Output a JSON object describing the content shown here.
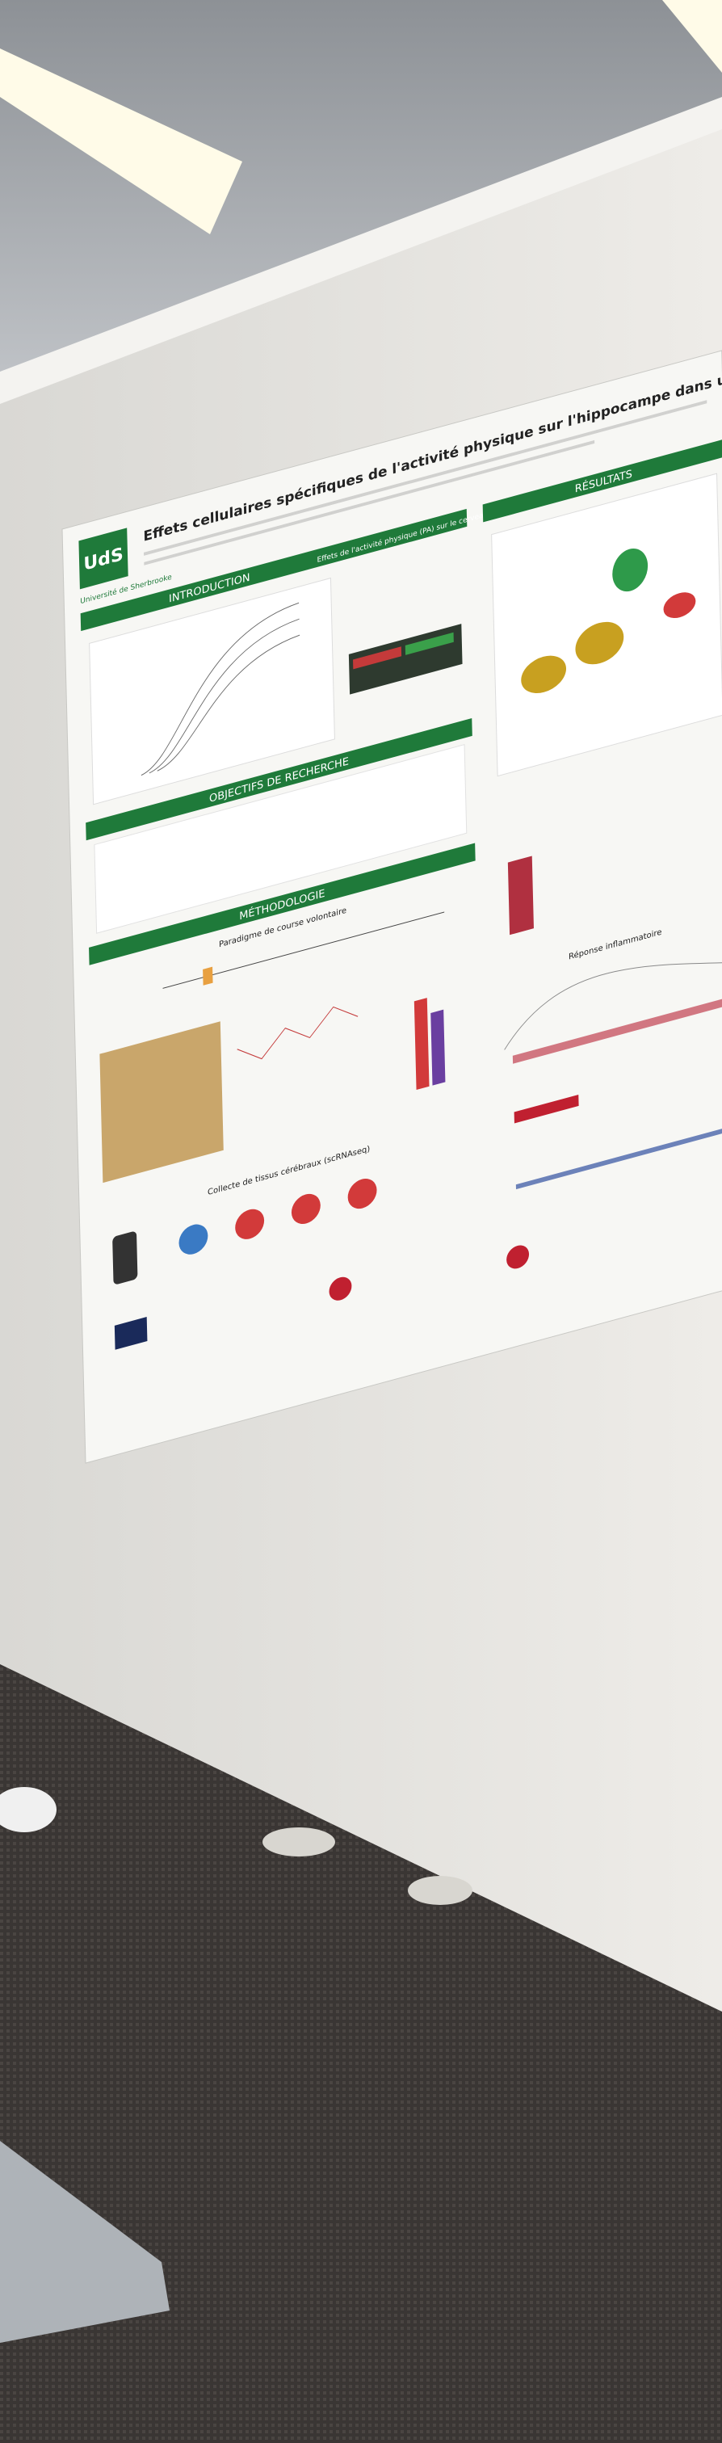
{
  "poster": {
    "title": "Effets cellulaires spécifiques de l'activité physique sur l'hippocampe dans un modèle animal",
    "logo": {
      "short": "UdS",
      "name": "Université de Sherbrooke"
    },
    "sections": {
      "introduction": "INTRODUCTION",
      "pa_effects": "Effets de l'activité physique (PA) sur le cerveau",
      "objectives": "OBJECTIFS DE RECHERCHE",
      "methodology": "MÉTHODOLOGIE",
      "paradigm": "Paradigme de course volontaire",
      "collection": "Collecte de tissus cérébraux (scRNAseq)",
      "results": "RÉSULTATS",
      "inflammation": "Réponse inflammatoire"
    }
  }
}
